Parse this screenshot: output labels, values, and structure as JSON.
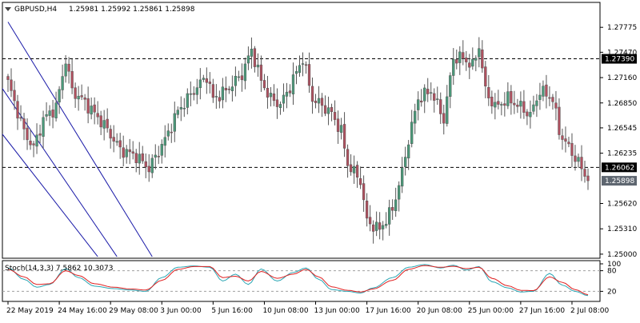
{
  "header": {
    "symbol_tf": "GBPUSD,H4",
    "ohlc": "1.25981 1.25992 1.25861 1.25898"
  },
  "colors": {
    "background": "#ffffff",
    "frame": "#000000",
    "bull_candle": "#4a9a7a",
    "bear_candle": "#b0505f",
    "wick": "#555555",
    "channel": "#1a1aa8",
    "hline": "#000000",
    "price_label_bg": "#000000",
    "last_price_bg": "#5e6670",
    "stoch_main": "#2aa6b4",
    "stoch_signal": "#e02020",
    "stoch_level": "#a0a0a0"
  },
  "chart_data": [
    {
      "type": "candlestick",
      "title": "GBPUSD,H4",
      "ohlc_header": "1.25981 1.25992 1.25861 1.25898",
      "ylim": [
        1.2495,
        1.2808
      ],
      "y_ticks": [
        "1.27775",
        "1.27470",
        "1.27160",
        "1.26850",
        "1.26545",
        "1.26235",
        "1.25620",
        "1.25310",
        "1.25000"
      ],
      "y_tick_values": [
        1.27775,
        1.2747,
        1.2716,
        1.2685,
        1.26545,
        1.26235,
        1.2562,
        1.2531,
        1.25
      ],
      "x_labels": [
        "22 May 2019",
        "24 May 16:00",
        "29 May 08:00",
        "3 Jun 00:00",
        "5 Jun 16:00",
        "10 Jun 08:00",
        "13 Jun 00:00",
        "17 Jun 16:00",
        "20 Jun 08:00",
        "25 Jun 00:00",
        "27 Jun 16:00",
        "2 Jul 08:00"
      ],
      "x_label_bar_index": [
        0,
        16,
        32,
        48,
        64,
        80,
        96,
        112,
        128,
        144,
        160,
        176
      ],
      "horizontal_lines": [
        {
          "price": 1.2739,
          "label": "1.27390"
        },
        {
          "price": 1.26062,
          "label": "1.26062"
        }
      ],
      "last_price": {
        "price": 1.25898,
        "label": "1.25898"
      },
      "channel_lines": [
        {
          "from": {
            "bar": 0,
            "price": 1.2784
          },
          "to": {
            "bar": 45,
            "price": 1.2497
          }
        },
        {
          "from": {
            "bar": -2,
            "price": 1.2704
          },
          "to": {
            "bar": 34,
            "price": 1.2497
          }
        },
        {
          "from": {
            "bar": -2,
            "price": 1.2648
          },
          "to": {
            "bar": 28,
            "price": 1.2497
          }
        }
      ],
      "close_anchors": [
        [
          0,
          1.271
        ],
        [
          5,
          1.265
        ],
        [
          8,
          1.263
        ],
        [
          11,
          1.2665
        ],
        [
          15,
          1.268
        ],
        [
          18,
          1.2738
        ],
        [
          20,
          1.27
        ],
        [
          24,
          1.2686
        ],
        [
          30,
          1.2658
        ],
        [
          35,
          1.2628
        ],
        [
          40,
          1.262
        ],
        [
          44,
          1.2605
        ],
        [
          49,
          1.264
        ],
        [
          53,
          1.2675
        ],
        [
          58,
          1.27
        ],
        [
          62,
          1.2718
        ],
        [
          64,
          1.269
        ],
        [
          68,
          1.27
        ],
        [
          73,
          1.272
        ],
        [
          76,
          1.275
        ],
        [
          79,
          1.2712
        ],
        [
          82,
          1.269
        ],
        [
          85,
          1.2683
        ],
        [
          88,
          1.2705
        ],
        [
          92,
          1.274
        ],
        [
          95,
          1.269
        ],
        [
          98,
          1.2682
        ],
        [
          101,
          1.2672
        ],
        [
          104,
          1.265
        ],
        [
          106,
          1.261
        ],
        [
          110,
          1.259
        ],
        [
          112,
          1.254
        ],
        [
          116,
          1.253
        ],
        [
          120,
          1.2555
        ],
        [
          123,
          1.26
        ],
        [
          125,
          1.264
        ],
        [
          128,
          1.269
        ],
        [
          132,
          1.27
        ],
        [
          136,
          1.2665
        ],
        [
          139,
          1.274
        ],
        [
          142,
          1.274
        ],
        [
          145,
          1.273
        ],
        [
          147,
          1.2755
        ],
        [
          149,
          1.27
        ],
        [
          152,
          1.268
        ],
        [
          156,
          1.269
        ],
        [
          160,
          1.268
        ],
        [
          163,
          1.267
        ],
        [
          166,
          1.27
        ],
        [
          170,
          1.269
        ],
        [
          172,
          1.265
        ],
        [
          175,
          1.263
        ],
        [
          178,
          1.2612
        ],
        [
          181,
          1.259
        ]
      ]
    },
    {
      "type": "line",
      "title": "Stoch(14,3,3) 7.5862 10.3073",
      "indicator_name": "Stoch(14,3,3)",
      "main_value": "7.5862",
      "signal_value": "10.3073",
      "ylim": [
        0,
        100
      ],
      "levels": [
        80,
        20
      ],
      "level_labels": [
        "100",
        "80",
        "20"
      ],
      "level_label_values": [
        100,
        80,
        20
      ],
      "series": [
        {
          "role": "main",
          "anchors": [
            [
              0,
              88
            ],
            [
              5,
              55
            ],
            [
              9,
              32
            ],
            [
              13,
              40
            ],
            [
              18,
              86
            ],
            [
              22,
              60
            ],
            [
              27,
              35
            ],
            [
              33,
              28
            ],
            [
              38,
              24
            ],
            [
              43,
              20
            ],
            [
              48,
              60
            ],
            [
              53,
              90
            ],
            [
              58,
              94
            ],
            [
              63,
              90
            ],
            [
              67,
              50
            ],
            [
              71,
              70
            ],
            [
              75,
              40
            ],
            [
              79,
              85
            ],
            [
              84,
              50
            ],
            [
              89,
              75
            ],
            [
              93,
              88
            ],
            [
              97,
              55
            ],
            [
              101,
              25
            ],
            [
              106,
              20
            ],
            [
              110,
              15
            ],
            [
              114,
              30
            ],
            [
              120,
              60
            ],
            [
              125,
              90
            ],
            [
              130,
              98
            ],
            [
              135,
              88
            ],
            [
              139,
              96
            ],
            [
              143,
              82
            ],
            [
              147,
              92
            ],
            [
              151,
              48
            ],
            [
              156,
              30
            ],
            [
              160,
              18
            ],
            [
              164,
              20
            ],
            [
              169,
              72
            ],
            [
              173,
              38
            ],
            [
              177,
              20
            ],
            [
              181,
              7.5862
            ]
          ]
        },
        {
          "role": "signal",
          "anchors": [
            [
              0,
              84
            ],
            [
              5,
              62
            ],
            [
              9,
              40
            ],
            [
              13,
              42
            ],
            [
              18,
              80
            ],
            [
              22,
              66
            ],
            [
              27,
              42
            ],
            [
              33,
              32
            ],
            [
              38,
              27
            ],
            [
              43,
              24
            ],
            [
              48,
              52
            ],
            [
              53,
              84
            ],
            [
              58,
              92
            ],
            [
              63,
              92
            ],
            [
              67,
              60
            ],
            [
              71,
              64
            ],
            [
              75,
              50
            ],
            [
              79,
              78
            ],
            [
              84,
              58
            ],
            [
              89,
              70
            ],
            [
              93,
              84
            ],
            [
              97,
              62
            ],
            [
              101,
              33
            ],
            [
              106,
              23
            ],
            [
              110,
              18
            ],
            [
              114,
              27
            ],
            [
              120,
              52
            ],
            [
              125,
              84
            ],
            [
              130,
              95
            ],
            [
              135,
              90
            ],
            [
              139,
              93
            ],
            [
              143,
              86
            ],
            [
              147,
              90
            ],
            [
              151,
              58
            ],
            [
              156,
              36
            ],
            [
              160,
              23
            ],
            [
              164,
              22
            ],
            [
              169,
              62
            ],
            [
              173,
              46
            ],
            [
              177,
              25
            ],
            [
              181,
              10.3073
            ]
          ]
        }
      ]
    }
  ]
}
